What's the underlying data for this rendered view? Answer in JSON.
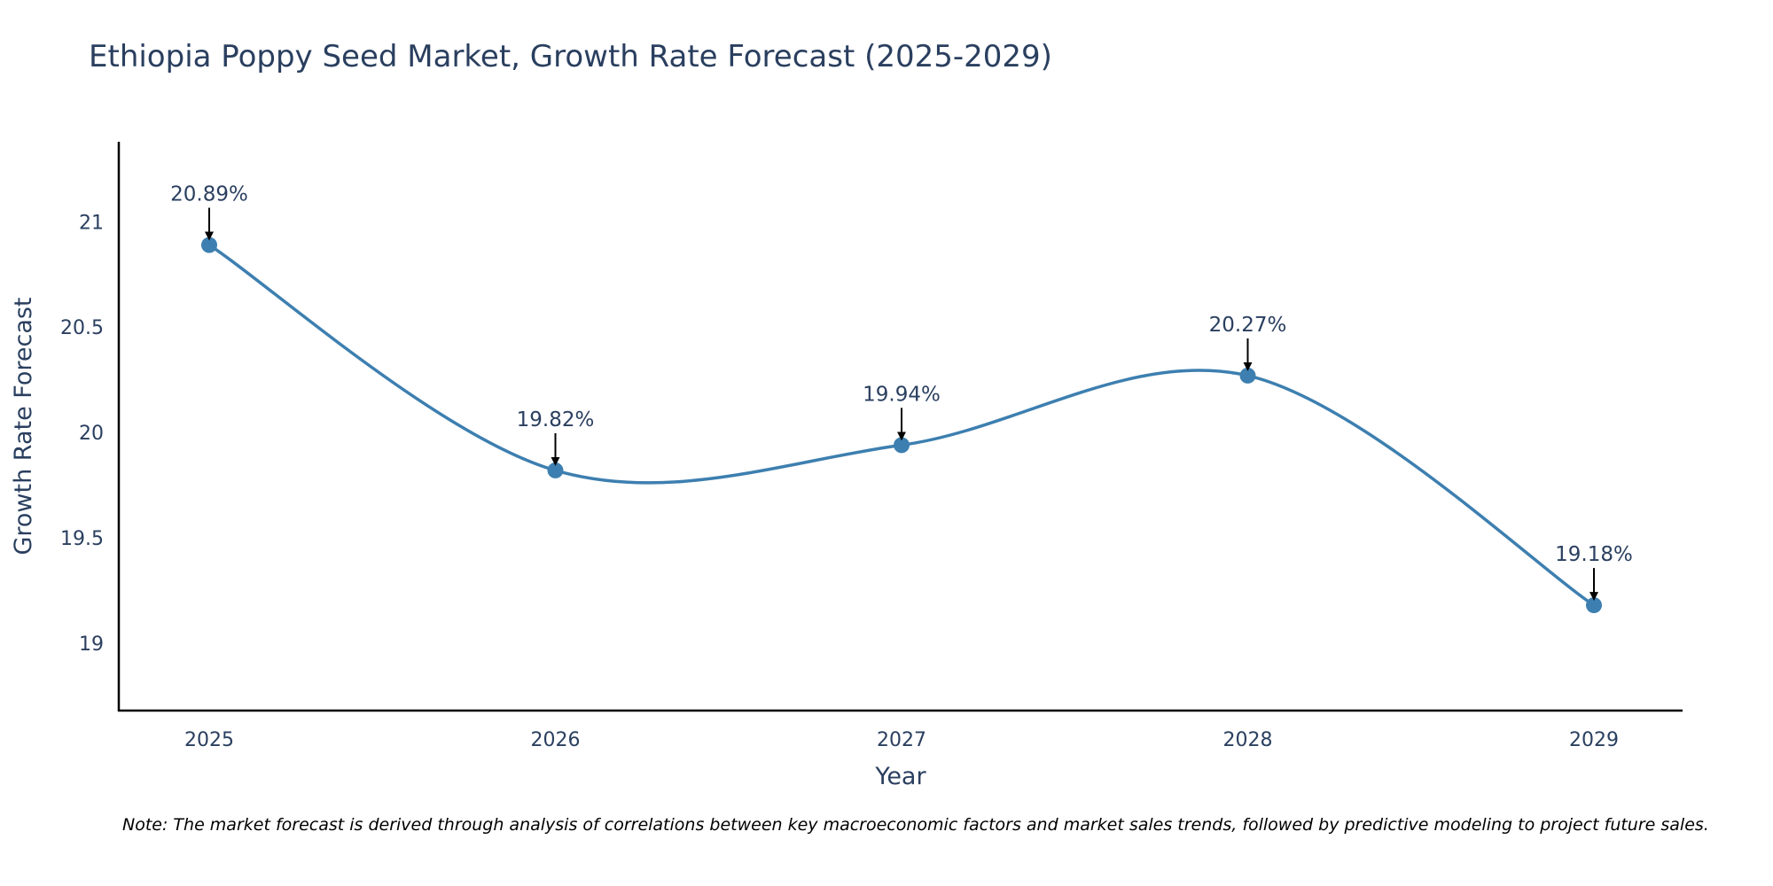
{
  "chart_data": {
    "type": "line",
    "title": "Ethiopia Poppy Seed Market, Growth Rate Forecast (2025-2029)",
    "xlabel": "Year",
    "ylabel": "Growth Rate Forecast",
    "categories": [
      "2025",
      "2026",
      "2027",
      "2028",
      "2029"
    ],
    "values": [
      20.89,
      19.82,
      19.94,
      20.27,
      19.18
    ],
    "data_labels": [
      "20.89%",
      "19.82%",
      "19.94%",
      "20.27%",
      "19.18%"
    ],
    "yticks": [
      19,
      19.5,
      20,
      20.5,
      21
    ],
    "ytick_labels": [
      "19",
      "19.5",
      "20",
      "20.5",
      "21"
    ],
    "ylim": [
      18.68,
      21.38
    ],
    "grid": false,
    "line_shape": "spline",
    "series_color": "#3d7fb0",
    "note": "Note: The market forecast is derived through analysis of correlations between key macroeconomic factors and market sales trends, followed by predictive modeling to project future sales."
  }
}
